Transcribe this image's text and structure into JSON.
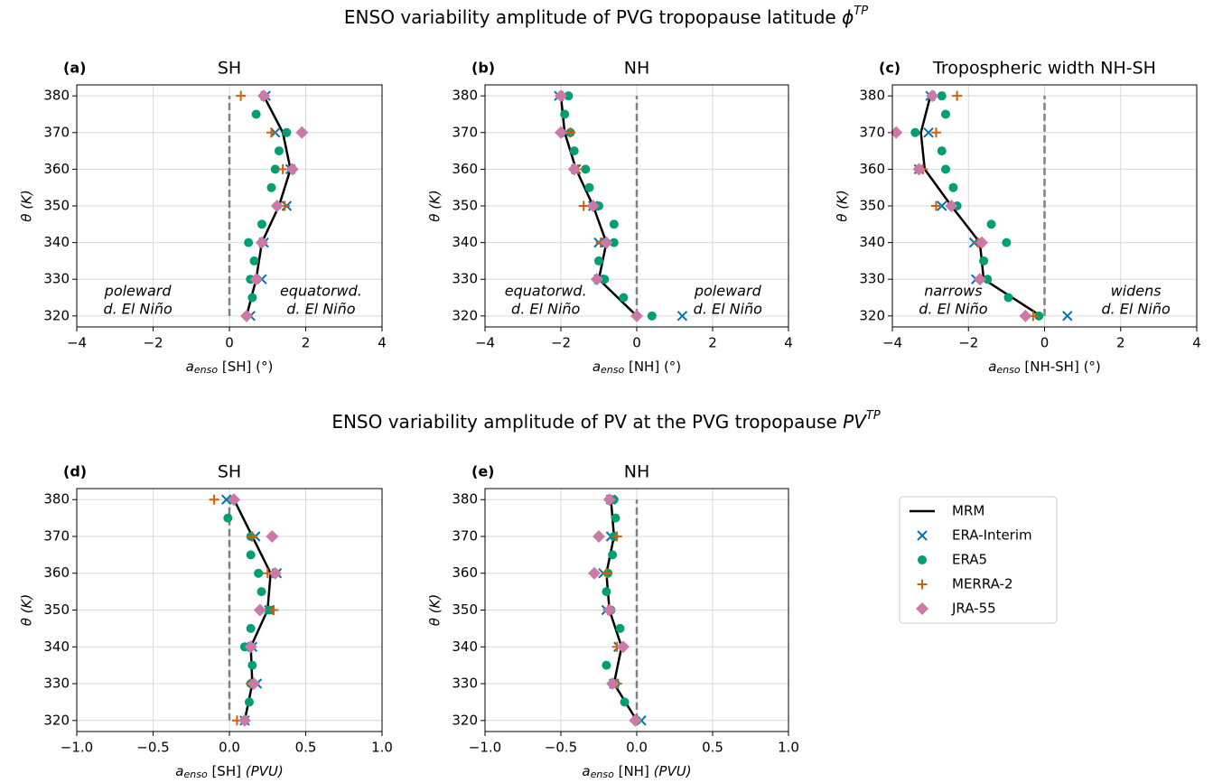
{
  "titles": [
    {
      "text": "ENSO variability amplitude of PVG tropopause latitude ",
      "symbol": "ϕ",
      "superscript": "TP"
    },
    {
      "text": "ENSO variability amplitude of PV at the PVG tropopause ",
      "symbol": "PV",
      "superscript": "TP"
    }
  ],
  "chart_data": [
    {
      "type": "line",
      "label": "(a)",
      "title": "SH",
      "xlabel": {
        "symbol": "a",
        "subscript": "enso",
        "text": " [SH] (°)"
      },
      "ylabel": "θ (K)",
      "xlim": [
        -4,
        4
      ],
      "xticks": [
        {
          "value": -4,
          "label": "−4"
        },
        {
          "value": -2,
          "label": "−2"
        },
        0,
        2,
        4
      ],
      "ylim": [
        317,
        383
      ],
      "yticks": [
        320,
        330,
        340,
        350,
        360,
        370,
        380
      ],
      "grid": true,
      "refline": 0,
      "annotations": [
        [
          "poleward",
          "d. El Niño"
        ],
        [
          "equatorwd.",
          "d. El Niño"
        ]
      ],
      "series": [
        {
          "name": "MRM",
          "color": "#000000",
          "marker": "line",
          "y": [
            320,
            330,
            340,
            350,
            360,
            370,
            380
          ],
          "values": [
            0.45,
            0.7,
            0.85,
            1.3,
            1.6,
            1.4,
            0.9
          ]
        },
        {
          "name": "ERA-Interim",
          "color": "#0072b2",
          "marker": "x",
          "y": [
            320,
            330,
            340,
            350,
            360,
            370,
            380
          ],
          "values": [
            0.55,
            0.85,
            0.9,
            1.5,
            1.6,
            1.2,
            0.95
          ]
        },
        {
          "name": "ERA5",
          "color": "#009e73",
          "marker": "o",
          "y": [
            320,
            325,
            330,
            335,
            340,
            345,
            350,
            355,
            360,
            365,
            370,
            375,
            380
          ],
          "values": [
            0.45,
            0.6,
            0.55,
            0.65,
            0.5,
            0.85,
            1.25,
            1.1,
            1.2,
            1.3,
            1.5,
            0.7,
            0.9
          ]
        },
        {
          "name": "MERRA-2",
          "color": "#d55e00",
          "marker": "+",
          "y": [
            320,
            330,
            340,
            350,
            360,
            370,
            380
          ],
          "values": [
            0.45,
            0.7,
            0.85,
            1.45,
            1.4,
            1.1,
            0.3
          ]
        },
        {
          "name": "JRA-55",
          "color": "#cc79a7",
          "marker": "D",
          "y": [
            320,
            330,
            340,
            350,
            360,
            370,
            380
          ],
          "values": [
            0.45,
            0.7,
            0.85,
            1.25,
            1.65,
            1.9,
            0.9
          ]
        }
      ]
    },
    {
      "type": "line",
      "label": "(b)",
      "title": "NH",
      "xlabel": {
        "symbol": "a",
        "subscript": "enso",
        "text": " [NH] (°)"
      },
      "ylabel": "θ (K)",
      "xlim": [
        -4,
        4
      ],
      "xticks": [
        {
          "value": -4,
          "label": "−4"
        },
        {
          "value": -2,
          "label": "−2"
        },
        0,
        2,
        4
      ],
      "ylim": [
        317,
        383
      ],
      "yticks": [
        320,
        330,
        340,
        350,
        360,
        370,
        380
      ],
      "grid": true,
      "refline": 0,
      "annotations": [
        [
          "equatorwd.",
          "d. El Niño"
        ],
        [
          "poleward",
          "d. El Niño"
        ]
      ],
      "series": [
        {
          "name": "MRM",
          "color": "#000000",
          "marker": "line",
          "y": [
            320,
            330,
            340,
            350,
            360,
            370,
            380
          ],
          "values": [
            0.0,
            -1.0,
            -0.8,
            -1.15,
            -1.6,
            -1.9,
            -2.0
          ]
        },
        {
          "name": "ERA-Interim",
          "color": "#0072b2",
          "marker": "x",
          "y": [
            320,
            330,
            340,
            350,
            360,
            370,
            380
          ],
          "values": [
            1.2,
            -1.0,
            -1.0,
            -1.15,
            -1.6,
            -1.85,
            -2.05
          ]
        },
        {
          "name": "ERA5",
          "color": "#009e73",
          "marker": "o",
          "y": [
            320,
            325,
            330,
            335,
            340,
            345,
            350,
            355,
            360,
            365,
            370,
            375,
            380
          ],
          "values": [
            0.4,
            -0.35,
            -0.85,
            -1.0,
            -0.6,
            -0.6,
            -1.0,
            -1.25,
            -1.35,
            -1.65,
            -1.75,
            -1.9,
            -1.8
          ]
        },
        {
          "name": "MERRA-2",
          "color": "#d55e00",
          "marker": "+",
          "y": [
            320,
            330,
            340,
            350,
            360,
            370,
            380
          ],
          "values": [
            0.0,
            -1.05,
            -0.95,
            -1.4,
            -1.55,
            -1.75,
            -2.0
          ]
        },
        {
          "name": "JRA-55",
          "color": "#cc79a7",
          "marker": "D",
          "y": [
            320,
            330,
            340,
            350,
            360,
            370,
            380
          ],
          "values": [
            0.0,
            -1.05,
            -0.8,
            -1.15,
            -1.65,
            -2.0,
            -2.0
          ]
        }
      ]
    },
    {
      "type": "line",
      "label": "(c)",
      "title": "Tropospheric width NH-SH",
      "xlabel": {
        "symbol": "a",
        "subscript": "enso",
        "text": " [NH-SH] (°)"
      },
      "ylabel": "θ (K)",
      "xlim": [
        -4,
        4
      ],
      "xticks": [
        {
          "value": -4,
          "label": "−4"
        },
        {
          "value": -2,
          "label": "−2"
        },
        0,
        2,
        4
      ],
      "ylim": [
        317,
        383
      ],
      "yticks": [
        320,
        330,
        340,
        350,
        360,
        370,
        380
      ],
      "grid": true,
      "refline": 0,
      "annotations": [
        [
          "narrows",
          "d. El Niño"
        ],
        [
          "widens",
          "d. El Niño"
        ]
      ],
      "series": [
        {
          "name": "MRM",
          "color": "#000000",
          "marker": "line",
          "y": [
            320,
            330,
            340,
            350,
            360,
            370,
            380
          ],
          "values": [
            -0.1,
            -1.6,
            -1.7,
            -2.45,
            -3.15,
            -3.25,
            -3.0
          ]
        },
        {
          "name": "ERA-Interim",
          "color": "#0072b2",
          "marker": "x",
          "y": [
            320,
            330,
            340,
            350,
            360,
            370,
            380
          ],
          "values": [
            0.6,
            -1.8,
            -1.85,
            -2.7,
            -3.3,
            -3.05,
            -3.0
          ]
        },
        {
          "name": "ERA5",
          "color": "#009e73",
          "marker": "o",
          "y": [
            320,
            325,
            330,
            335,
            340,
            345,
            350,
            355,
            360,
            365,
            370,
            375,
            380
          ],
          "values": [
            -0.15,
            -0.95,
            -1.5,
            -1.6,
            -1.0,
            -1.4,
            -2.3,
            -2.4,
            -2.6,
            -2.7,
            -3.4,
            -2.6,
            -2.7
          ]
        },
        {
          "name": "MERRA-2",
          "color": "#d55e00",
          "marker": "+",
          "y": [
            320,
            330,
            340,
            350,
            360,
            370,
            380
          ],
          "values": [
            -0.3,
            -1.7,
            -1.75,
            -2.85,
            -3.2,
            -2.85,
            -2.3
          ]
        },
        {
          "name": "JRA-55",
          "color": "#cc79a7",
          "marker": "D",
          "y": [
            320,
            330,
            340,
            350,
            360,
            370,
            380
          ],
          "values": [
            -0.5,
            -1.7,
            -1.65,
            -2.45,
            -3.3,
            -3.9,
            -2.95
          ]
        }
      ]
    },
    {
      "type": "line",
      "label": "(d)",
      "title": "SH",
      "xlabel": {
        "symbol": "a",
        "subscript": "enso",
        "text": " [SH] ",
        "unit": "(PVU)"
      },
      "ylabel": "θ (K)",
      "xlim": [
        -1,
        1
      ],
      "xticks": [
        {
          "value": -1,
          "label": "−1.0"
        },
        {
          "value": -0.5,
          "label": "−0.5"
        },
        {
          "value": 0,
          "label": "0.0"
        },
        0.5,
        {
          "value": 1,
          "label": "1.0"
        }
      ],
      "ylim": [
        317,
        383
      ],
      "yticks": [
        320,
        330,
        340,
        350,
        360,
        370,
        380
      ],
      "grid": true,
      "refline": 0,
      "series": [
        {
          "name": "MRM",
          "color": "#000000",
          "marker": "line",
          "y": [
            320,
            330,
            340,
            350,
            360,
            370,
            380
          ],
          "values": [
            0.1,
            0.15,
            0.14,
            0.25,
            0.27,
            0.15,
            0.03
          ]
        },
        {
          "name": "ERA-Interim",
          "color": "#0072b2",
          "marker": "x",
          "y": [
            320,
            330,
            340,
            350,
            360,
            370,
            380
          ],
          "values": [
            0.1,
            0.18,
            0.15,
            0.26,
            0.31,
            0.17,
            -0.02
          ]
        },
        {
          "name": "ERA5",
          "color": "#009e73",
          "marker": "o",
          "y": [
            320,
            325,
            330,
            335,
            340,
            345,
            350,
            355,
            360,
            365,
            370,
            375,
            380
          ],
          "values": [
            0.1,
            0.13,
            0.14,
            0.15,
            0.1,
            0.14,
            0.26,
            0.21,
            0.19,
            0.14,
            0.14,
            -0.01,
            0.02
          ]
        },
        {
          "name": "MERRA-2",
          "color": "#d55e00",
          "marker": "+",
          "y": [
            320,
            330,
            340,
            350,
            360,
            370,
            380
          ],
          "values": [
            0.05,
            0.14,
            0.14,
            0.29,
            0.25,
            0.15,
            -0.1
          ]
        },
        {
          "name": "JRA-55",
          "color": "#cc79a7",
          "marker": "D",
          "y": [
            320,
            330,
            340,
            350,
            360,
            370,
            380
          ],
          "values": [
            0.1,
            0.16,
            0.14,
            0.2,
            0.3,
            0.28,
            0.03
          ]
        }
      ]
    },
    {
      "type": "line",
      "label": "(e)",
      "title": "NH",
      "xlabel": {
        "symbol": "a",
        "subscript": "enso",
        "text": " [NH] ",
        "unit": "(PVU)"
      },
      "ylabel": "θ (K)",
      "xlim": [
        -1,
        1
      ],
      "xticks": [
        {
          "value": -1,
          "label": "−1.0"
        },
        {
          "value": -0.5,
          "label": "−0.5"
        },
        {
          "value": 0,
          "label": "0.0"
        },
        0.5,
        {
          "value": 1,
          "label": "1.0"
        }
      ],
      "ylim": [
        317,
        383
      ],
      "yticks": [
        320,
        330,
        340,
        350,
        360,
        370,
        380
      ],
      "grid": true,
      "refline": 0,
      "legend": "outside right",
      "series": [
        {
          "name": "MRM",
          "color": "#000000",
          "marker": "line",
          "y": [
            320,
            330,
            340,
            350,
            360,
            370,
            380
          ],
          "values": [
            0.0,
            -0.15,
            -0.1,
            -0.18,
            -0.2,
            -0.15,
            -0.17
          ]
        },
        {
          "name": "ERA-Interim",
          "color": "#0072b2",
          "marker": "x",
          "y": [
            320,
            330,
            340,
            350,
            360,
            370,
            380
          ],
          "values": [
            0.03,
            -0.15,
            -0.12,
            -0.2,
            -0.22,
            -0.17,
            -0.17
          ]
        },
        {
          "name": "ERA5",
          "color": "#009e73",
          "marker": "o",
          "y": [
            320,
            325,
            330,
            335,
            340,
            345,
            350,
            355,
            360,
            365,
            370,
            375,
            380
          ],
          "values": [
            0.0,
            -0.08,
            -0.14,
            -0.2,
            -0.09,
            -0.11,
            -0.17,
            -0.2,
            -0.19,
            -0.16,
            -0.15,
            -0.14,
            -0.15
          ]
        },
        {
          "name": "MERRA-2",
          "color": "#d55e00",
          "marker": "+",
          "y": [
            320,
            330,
            340,
            350,
            360,
            370,
            380
          ],
          "values": [
            -0.01,
            -0.13,
            -0.13,
            -0.19,
            -0.2,
            -0.13,
            -0.17
          ]
        },
        {
          "name": "JRA-55",
          "color": "#cc79a7",
          "marker": "D",
          "y": [
            320,
            330,
            340,
            350,
            360,
            370,
            380
          ],
          "values": [
            -0.01,
            -0.16,
            -0.09,
            -0.18,
            -0.28,
            -0.25,
            -0.18
          ]
        }
      ]
    }
  ]
}
